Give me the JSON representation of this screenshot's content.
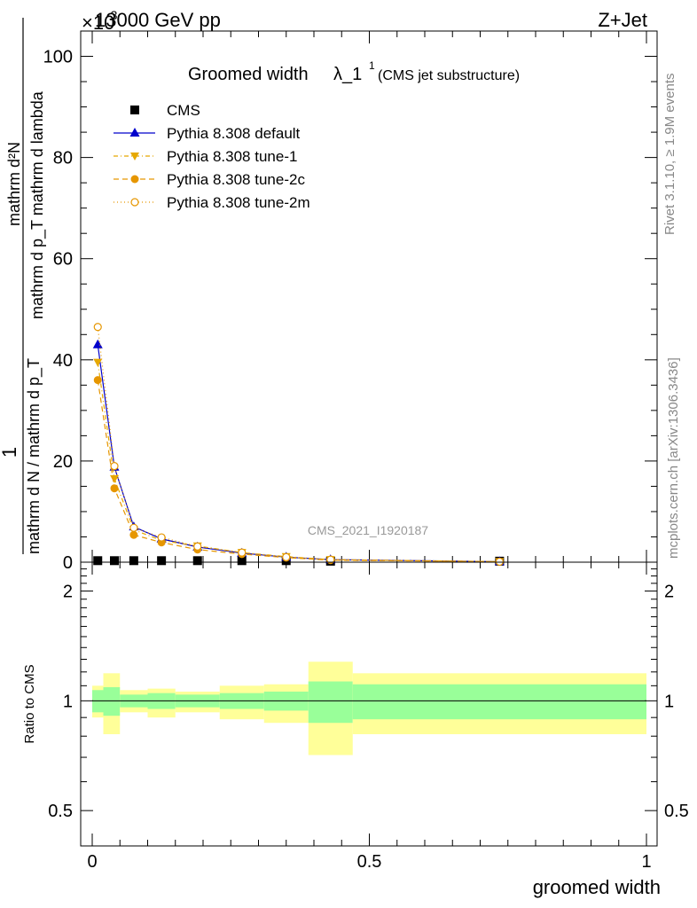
{
  "header": {
    "energy_label": "13000 GeV pp",
    "process_label": "Z+Jet",
    "exponent_label": "×10",
    "exponent_power": "-3"
  },
  "side_labels": {
    "rivet": "Rivet 3.1.10, ≥ 1.9M events",
    "mcplots": "mcplots.cern.ch [arXiv:1306.3436]"
  },
  "chart_data": [
    {
      "type": "line",
      "title": "Groomed width",
      "title_symbol": "λ_1",
      "title_sup": "1",
      "subtitle": "(CMS jet substructure)",
      "watermark": "CMS_2021_I1920187",
      "ylabel_num": "mathrm d²N",
      "ylabel_den": "mathrm d p_T mathrm d lambda",
      "ylabel_left": "1",
      "ylabel_left_den": "mathrm d N / mathrm d p_T",
      "ylim": [
        0,
        105
      ],
      "yticks": [
        "0",
        "20",
        "40",
        "60",
        "80",
        "100"
      ],
      "xlim": [
        0,
        1
      ],
      "legend_position": "top-left",
      "x": [
        0.01,
        0.04,
        0.075,
        0.125,
        0.19,
        0.27,
        0.35,
        0.43,
        0.735
      ],
      "series": [
        {
          "name": "CMS",
          "color": "#000000",
          "marker": "square",
          "dash": "none",
          "values": [
            0.3,
            0.3,
            0.3,
            0.3,
            0.3,
            0.3,
            0.3,
            0.2,
            0.2
          ]
        },
        {
          "name": "Pythia 8.308 default",
          "color": "#0000cc",
          "marker": "triangle-up",
          "dash": "none",
          "values": [
            43,
            18.8,
            7.0,
            4.6,
            3.0,
            1.8,
            1.0,
            0.5,
            0.1
          ]
        },
        {
          "name": "Pythia 8.308 tune-1",
          "color": "#e6a800",
          "marker": "triangle-down",
          "dash": "5,3,1,3",
          "values": [
            39.5,
            16.5,
            6.4,
            4.3,
            3.2,
            1.9,
            1.1,
            0.5,
            0.1
          ]
        },
        {
          "name": "Pythia 8.308 tune-2c",
          "color": "#e69600",
          "marker": "circle",
          "dash": "6,4",
          "values": [
            36,
            14.6,
            5.4,
            3.9,
            2.5,
            1.6,
            0.9,
            0.4,
            0.1
          ]
        },
        {
          "name": "Pythia 8.308 tune-2m",
          "color": "#e69600",
          "marker": "circle-open",
          "dash": "1,3",
          "values": [
            46.5,
            19.0,
            6.8,
            4.9,
            3.1,
            1.9,
            1.0,
            0.5,
            0.1
          ]
        }
      ]
    },
    {
      "type": "area",
      "ylabel": "Ratio to CMS",
      "xlabel": "groomed width",
      "xticks": [
        "0",
        "0.5",
        "1"
      ],
      "yticks": [
        "0.5",
        "1",
        "2"
      ],
      "ylim": [
        0.4,
        2.4
      ],
      "log_y": true,
      "bins": [
        0.0,
        0.02,
        0.05,
        0.1,
        0.15,
        0.23,
        0.31,
        0.39,
        0.47,
        1.0
      ],
      "inner_band": {
        "color": "#99ff99",
        "low": [
          0.93,
          0.91,
          0.96,
          0.95,
          0.96,
          0.95,
          0.94,
          0.87,
          0.89
        ],
        "high": [
          1.07,
          1.09,
          1.04,
          1.05,
          1.04,
          1.05,
          1.06,
          1.13,
          1.11
        ]
      },
      "outer_band": {
        "color": "#ffff99",
        "low": [
          0.9,
          0.81,
          0.93,
          0.9,
          0.93,
          0.89,
          0.87,
          0.71,
          0.81
        ],
        "high": [
          1.1,
          1.19,
          1.07,
          1.08,
          1.06,
          1.1,
          1.11,
          1.28,
          1.19
        ]
      }
    }
  ]
}
